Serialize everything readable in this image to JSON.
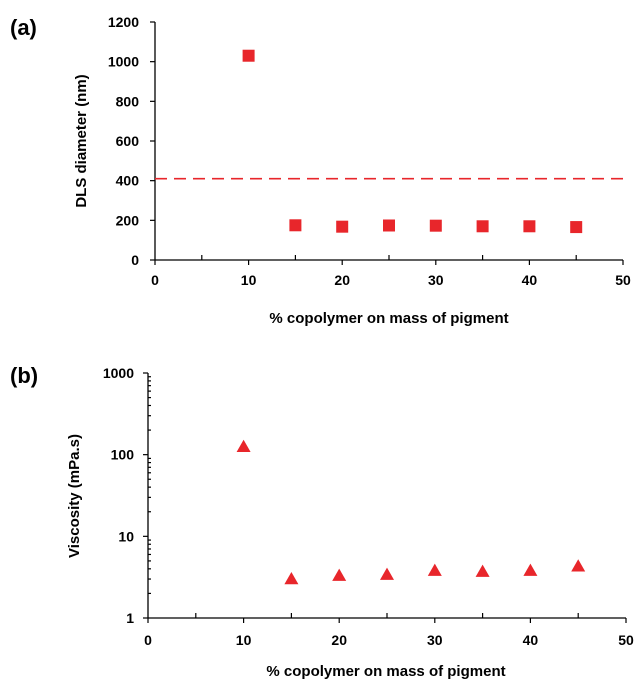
{
  "chart_data": [
    {
      "type": "scatter",
      "panel_label": "(a)",
      "xlabel": "% copolymer on mass of pigment",
      "ylabel": "DLS diameter (nm)",
      "xlim": [
        0,
        50
      ],
      "ylim": [
        0,
        1200
      ],
      "x_ticks": [
        0,
        10,
        20,
        30,
        40,
        50
      ],
      "y_ticks": [
        0,
        200,
        400,
        600,
        800,
        1000,
        1200
      ],
      "grid": false,
      "marker": "square",
      "color": "#e8262b",
      "series": [
        {
          "x": [
            10,
            15,
            20,
            25,
            30,
            35,
            40,
            45
          ],
          "y": [
            1030,
            175,
            168,
            174,
            173,
            170,
            170,
            166
          ]
        }
      ],
      "reference_line": {
        "y": 410,
        "style": "dashed",
        "color": "#e8262b"
      }
    },
    {
      "type": "scatter",
      "panel_label": "(b)",
      "xlabel": "% copolymer on mass of pigment",
      "ylabel": "Viscosity (mPa.s)",
      "xlim": [
        0,
        50
      ],
      "ylim": [
        1,
        1000
      ],
      "y_scale": "log",
      "x_ticks": [
        0,
        10,
        20,
        30,
        40,
        50
      ],
      "y_ticks": [
        1,
        10,
        100,
        1000
      ],
      "grid": false,
      "marker": "triangle",
      "color": "#e8262b",
      "series": [
        {
          "x": [
            10,
            15,
            20,
            25,
            30,
            35,
            40,
            45
          ],
          "y": [
            125,
            3.0,
            3.3,
            3.4,
            3.8,
            3.7,
            3.8,
            4.3
          ]
        }
      ]
    }
  ]
}
